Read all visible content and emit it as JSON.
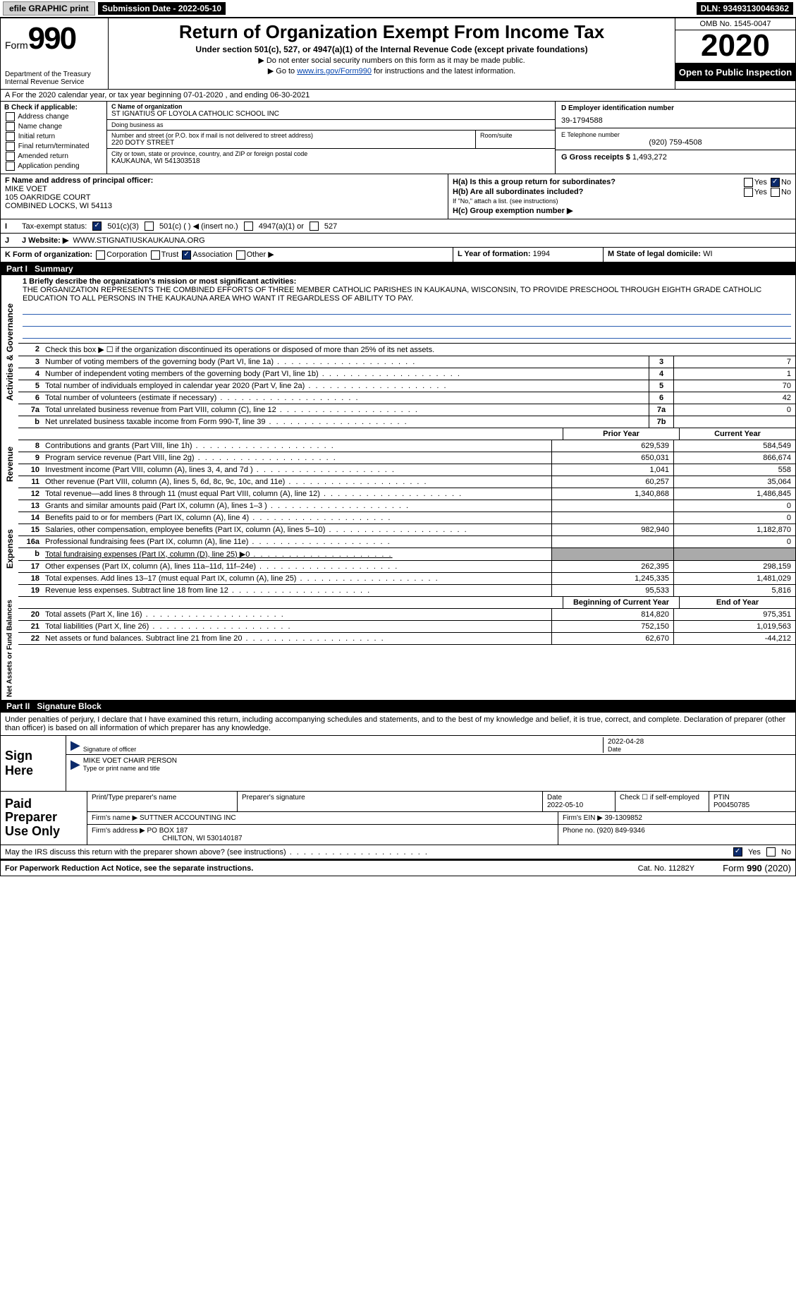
{
  "topbar": {
    "efile": "efile GRAPHIC print",
    "submission_label": "Submission Date - 2022-05-10",
    "dln_label": "DLN: 93493130046362"
  },
  "header": {
    "form_prefix": "Form",
    "form_number": "990",
    "dept": "Department of the Treasury",
    "irs": "Internal Revenue Service",
    "title": "Return of Organization Exempt From Income Tax",
    "subtitle": "Under section 501(c), 527, or 4947(a)(1) of the Internal Revenue Code (except private foundations)",
    "note1": "▶ Do not enter social security numbers on this form as it may be made public.",
    "note2_prefix": "▶ Go to ",
    "note2_link": "www.irs.gov/Form990",
    "note2_suffix": " for instructions and the latest information.",
    "omb": "OMB No. 1545-0047",
    "year": "2020",
    "open": "Open to Public Inspection"
  },
  "lineA": {
    "text": "A  For the 2020 calendar year, or tax year beginning 07-01-2020    , and ending 06-30-2021"
  },
  "sectionB": {
    "label": "B Check if applicable:",
    "opts": [
      "Address change",
      "Name change",
      "Initial return",
      "Final return/terminated",
      "Amended return",
      "Application pending"
    ]
  },
  "sectionC": {
    "name_label": "C Name of organization",
    "name": "ST IGNATIUS OF LOYOLA CATHOLIC SCHOOL INC",
    "dba_label": "Doing business as",
    "dba": "",
    "street_label": "Number and street (or P.O. box if mail is not delivered to street address)",
    "street": "220 DOTY STREET",
    "room_label": "Room/suite",
    "room": "",
    "city_label": "City or town, state or province, country, and ZIP or foreign postal code",
    "city": "KAUKAUNA, WI  541303518"
  },
  "sectionD": {
    "ein_label": "D Employer identification number",
    "ein": "39-1794588",
    "phone_label": "E Telephone number",
    "phone": "(920) 759-4508",
    "gross_label": "G Gross receipts $",
    "gross": "1,493,272"
  },
  "sectionF": {
    "label": "F  Name and address of principal officer:",
    "name": "MIKE VOET",
    "addr1": "105 OAKRIDGE COURT",
    "addr2": "COMBINED LOCKS, WI  54113"
  },
  "sectionH": {
    "a_label": "H(a)  Is this a group return for subordinates?",
    "a_yes": "Yes",
    "a_no": "No",
    "b_label": "H(b)  Are all subordinates included?",
    "b_yes": "Yes",
    "b_no": "No",
    "b_note": "If \"No,\" attach a list. (see instructions)",
    "c_label": "H(c)  Group exemption number ▶"
  },
  "lineI": {
    "label": "I   Tax-exempt status:",
    "o1": "501(c)(3)",
    "o2": "501(c) (  ) ◀ (insert no.)",
    "o3": "4947(a)(1) or",
    "o4": "527"
  },
  "lineJ": {
    "label": "J   Website: ▶",
    "value": "WWW.STIGNATIUSKAUKAUNA.ORG"
  },
  "lineK": {
    "label": "K Form of organization:",
    "o1": "Corporation",
    "o2": "Trust",
    "o3": "Association",
    "o4": "Other ▶"
  },
  "lineL": {
    "label": "L Year of formation:",
    "value": "1994"
  },
  "lineM": {
    "label": "M State of legal domicile:",
    "value": "WI"
  },
  "parts": {
    "p1": "Part I",
    "p1_title": "Summary",
    "p2": "Part II",
    "p2_title": "Signature Block"
  },
  "sidetabs": {
    "gov": "Activities & Governance",
    "rev": "Revenue",
    "exp": "Expenses",
    "net": "Net Assets or Fund Balances"
  },
  "mission": {
    "label": "1   Briefly describe the organization's mission or most significant activities:",
    "text": "THE ORGANIZATION REPRESENTS THE COMBINED EFFORTS OF THREE MEMBER CATHOLIC PARISHES IN KAUKAUNA, WISCONSIN, TO PROVIDE PRESCHOOL THROUGH EIGHTH GRADE CATHOLIC EDUCATION TO ALL PERSONS IN THE KAUKAUNA AREA WHO WANT IT REGARDLESS OF ABILITY TO PAY."
  },
  "govlines": {
    "l2": "Check this box ▶ ☐ if the organization discontinued its operations or disposed of more than 25% of its net assets.",
    "l3": {
      "d": "Number of voting members of the governing body (Part VI, line 1a)",
      "n": "3",
      "v": "7"
    },
    "l4": {
      "d": "Number of independent voting members of the governing body (Part VI, line 1b)",
      "n": "4",
      "v": "1"
    },
    "l5": {
      "d": "Total number of individuals employed in calendar year 2020 (Part V, line 2a)",
      "n": "5",
      "v": "70"
    },
    "l6": {
      "d": "Total number of volunteers (estimate if necessary)",
      "n": "6",
      "v": "42"
    },
    "l7a": {
      "d": "Total unrelated business revenue from Part VIII, column (C), line 12",
      "n": "7a",
      "v": "0"
    },
    "l7b": {
      "d": "Net unrelated business taxable income from Form 990-T, line 39",
      "n": "7b",
      "v": ""
    }
  },
  "colhdr": {
    "prior": "Prior Year",
    "current": "Current Year"
  },
  "revenue": [
    {
      "n": "8",
      "d": "Contributions and grants (Part VIII, line 1h)",
      "p": "629,539",
      "c": "584,549"
    },
    {
      "n": "9",
      "d": "Program service revenue (Part VIII, line 2g)",
      "p": "650,031",
      "c": "866,674"
    },
    {
      "n": "10",
      "d": "Investment income (Part VIII, column (A), lines 3, 4, and 7d )",
      "p": "1,041",
      "c": "558"
    },
    {
      "n": "11",
      "d": "Other revenue (Part VIII, column (A), lines 5, 6d, 8c, 9c, 10c, and 11e)",
      "p": "60,257",
      "c": "35,064"
    },
    {
      "n": "12",
      "d": "Total revenue—add lines 8 through 11 (must equal Part VIII, column (A), line 12)",
      "p": "1,340,868",
      "c": "1,486,845"
    }
  ],
  "expenses": [
    {
      "n": "13",
      "d": "Grants and similar amounts paid (Part IX, column (A), lines 1–3 )",
      "p": "",
      "c": "0"
    },
    {
      "n": "14",
      "d": "Benefits paid to or for members (Part IX, column (A), line 4)",
      "p": "",
      "c": "0"
    },
    {
      "n": "15",
      "d": "Salaries, other compensation, employee benefits (Part IX, column (A), lines 5–10)",
      "p": "982,940",
      "c": "1,182,870"
    },
    {
      "n": "16a",
      "d": "Professional fundraising fees (Part IX, column (A), line 11e)",
      "p": "",
      "c": "0"
    },
    {
      "n": "b",
      "d": "Total fundraising expenses (Part IX, column (D), line 25) ▶0",
      "p": "",
      "c": ""
    },
    {
      "n": "17",
      "d": "Other expenses (Part IX, column (A), lines 11a–11d, 11f–24e)",
      "p": "262,395",
      "c": "298,159"
    },
    {
      "n": "18",
      "d": "Total expenses. Add lines 13–17 (must equal Part IX, column (A), line 25)",
      "p": "1,245,335",
      "c": "1,481,029"
    },
    {
      "n": "19",
      "d": "Revenue less expenses. Subtract line 18 from line 12",
      "p": "95,533",
      "c": "5,816"
    }
  ],
  "nethdr": {
    "begin": "Beginning of Current Year",
    "end": "End of Year"
  },
  "net": [
    {
      "n": "20",
      "d": "Total assets (Part X, line 16)",
      "p": "814,820",
      "c": "975,351"
    },
    {
      "n": "21",
      "d": "Total liabilities (Part X, line 26)",
      "p": "752,150",
      "c": "1,019,563"
    },
    {
      "n": "22",
      "d": "Net assets or fund balances. Subtract line 21 from line 20",
      "p": "62,670",
      "c": "-44,212"
    }
  ],
  "signature": {
    "decl": "Under penalties of perjury, I declare that I have examined this return, including accompanying schedules and statements, and to the best of my knowledge and belief, it is true, correct, and complete. Declaration of preparer (other than officer) is based on all information of which preparer has any knowledge.",
    "sign_here": "Sign Here",
    "sig_label": "Signature of officer",
    "date_label": "Date",
    "date": "2022-04-28",
    "name_title": "MIKE VOET CHAIR PERSON",
    "name_title_label": "Type or print name and title"
  },
  "paid": {
    "label": "Paid Preparer Use Only",
    "r1": {
      "name_label": "Print/Type preparer's name",
      "name": "",
      "sig_label": "Preparer's signature",
      "sig": "",
      "date_label": "Date",
      "date": "2022-05-10",
      "check_label": "Check ☐ if self-employed",
      "ptin_label": "PTIN",
      "ptin": "P00450785"
    },
    "r2": {
      "firm_label": "Firm's name    ▶",
      "firm": "SUTTNER ACCOUNTING INC",
      "ein_label": "Firm's EIN ▶",
      "ein": "39-1309852"
    },
    "r3": {
      "addr_label": "Firm's address ▶",
      "addr1": "PO BOX 187",
      "addr2": "CHILTON, WI  530140187",
      "phone_label": "Phone no.",
      "phone": "(920) 849-9346"
    }
  },
  "discuss": {
    "q": "May the IRS discuss this return with the preparer shown above? (see instructions)",
    "yes": "Yes",
    "no": "No"
  },
  "footer": {
    "left": "For Paperwork Reduction Act Notice, see the separate instructions.",
    "mid": "Cat. No. 11282Y",
    "right_prefix": "Form ",
    "right_form": "990",
    "right_suffix": " (2020)"
  },
  "colors": {
    "link": "#0645ad",
    "black": "#000000",
    "darkblue": "#0b2a6b"
  }
}
